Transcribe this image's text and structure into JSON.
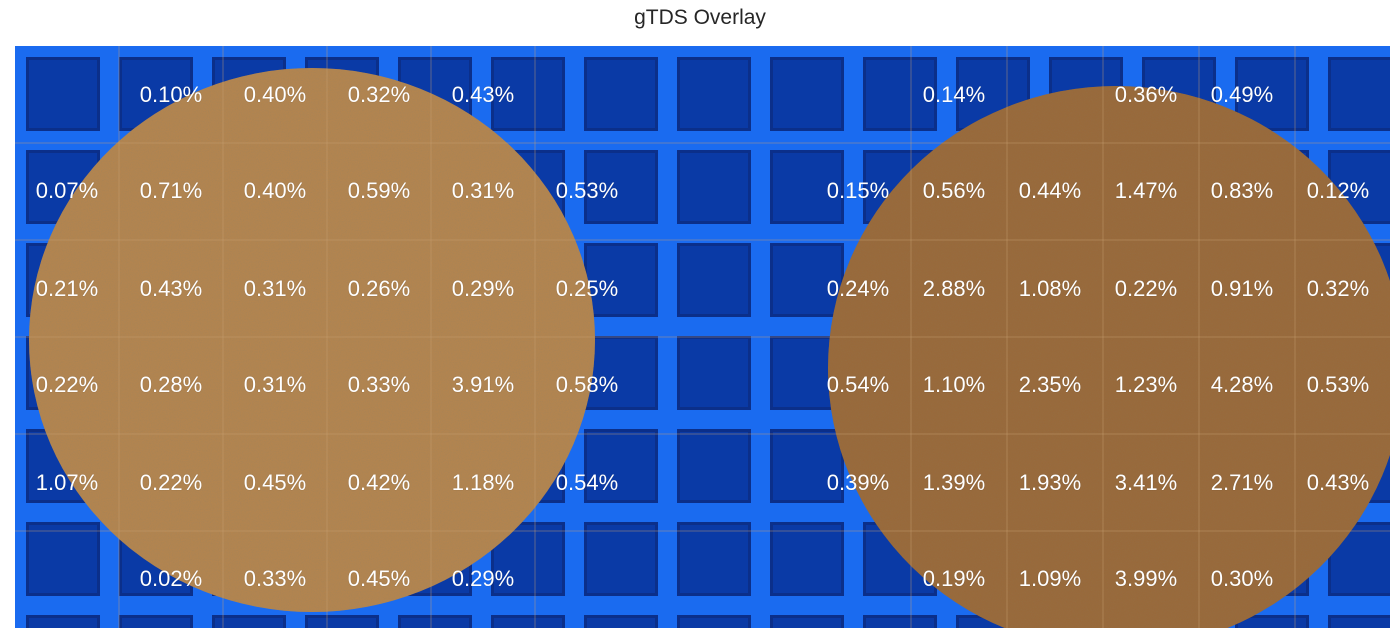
{
  "title": "gTDS Overlay",
  "colors": {
    "tray_blue": "#1a6bf0",
    "tray_dark": "#0a3aa6",
    "puck_left": "#b8864e",
    "puck_right": "#9a6838",
    "label": "#ffffff"
  },
  "left_puck": {
    "rows": [
      [
        "",
        "0.10%",
        "0.40%",
        "0.32%",
        "0.43%",
        ""
      ],
      [
        "0.07%",
        "0.71%",
        "0.40%",
        "0.59%",
        "0.31%",
        "0.53%"
      ],
      [
        "0.21%",
        "0.43%",
        "0.31%",
        "0.26%",
        "0.29%",
        "0.25%"
      ],
      [
        "0.22%",
        "0.28%",
        "0.31%",
        "0.33%",
        "3.91%",
        "0.58%"
      ],
      [
        "1.07%",
        "0.22%",
        "0.45%",
        "0.42%",
        "1.18%",
        "0.54%"
      ],
      [
        "",
        "0.02%",
        "0.33%",
        "0.45%",
        "0.29%",
        ""
      ]
    ]
  },
  "right_puck": {
    "rows": [
      [
        "",
        "0.14%",
        "",
        "0.36%",
        "0.49%",
        ""
      ],
      [
        "0.15%",
        "0.56%",
        "0.44%",
        "1.47%",
        "0.83%",
        "0.12%"
      ],
      [
        "0.24%",
        "2.88%",
        "1.08%",
        "0.22%",
        "0.91%",
        "0.32%"
      ],
      [
        "0.54%",
        "1.10%",
        "2.35%",
        "1.23%",
        "4.28%",
        "0.53%"
      ],
      [
        "0.39%",
        "1.39%",
        "1.93%",
        "3.41%",
        "2.71%",
        "0.43%"
      ],
      [
        "",
        "0.19%",
        "1.09%",
        "3.99%",
        "0.30%",
        ""
      ]
    ]
  }
}
